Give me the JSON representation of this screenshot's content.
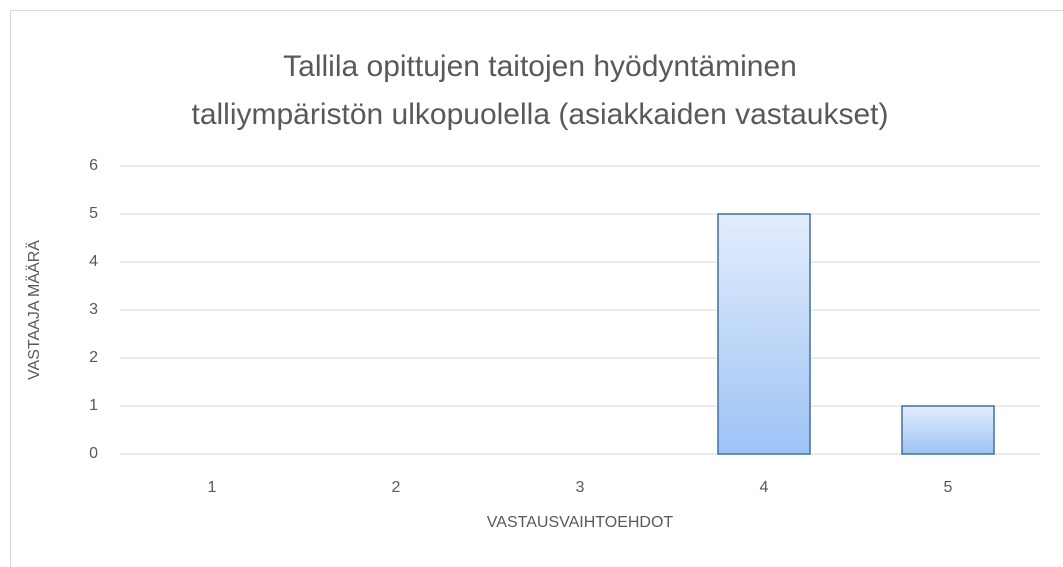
{
  "chart_data": {
    "type": "bar",
    "title": [
      "Tallila opittujen taitojen hyödyntäminen",
      "talliympäristön ulkopuolella (asiakkaiden vastaukset)"
    ],
    "x_label": "VASTAUSVAIHTOEHDOT",
    "y_label": "VASTAAJA MÄÄRÄ",
    "categories": [
      "1",
      "2",
      "3",
      "4",
      "5"
    ],
    "values": [
      0,
      0,
      0,
      5,
      1
    ],
    "color": "#9dc3f5",
    "edge_color": "#41719c",
    "ylim": [
      0,
      6
    ],
    "yticks": [
      0,
      1,
      2,
      3,
      4,
      5,
      6
    ],
    "grid": true
  }
}
